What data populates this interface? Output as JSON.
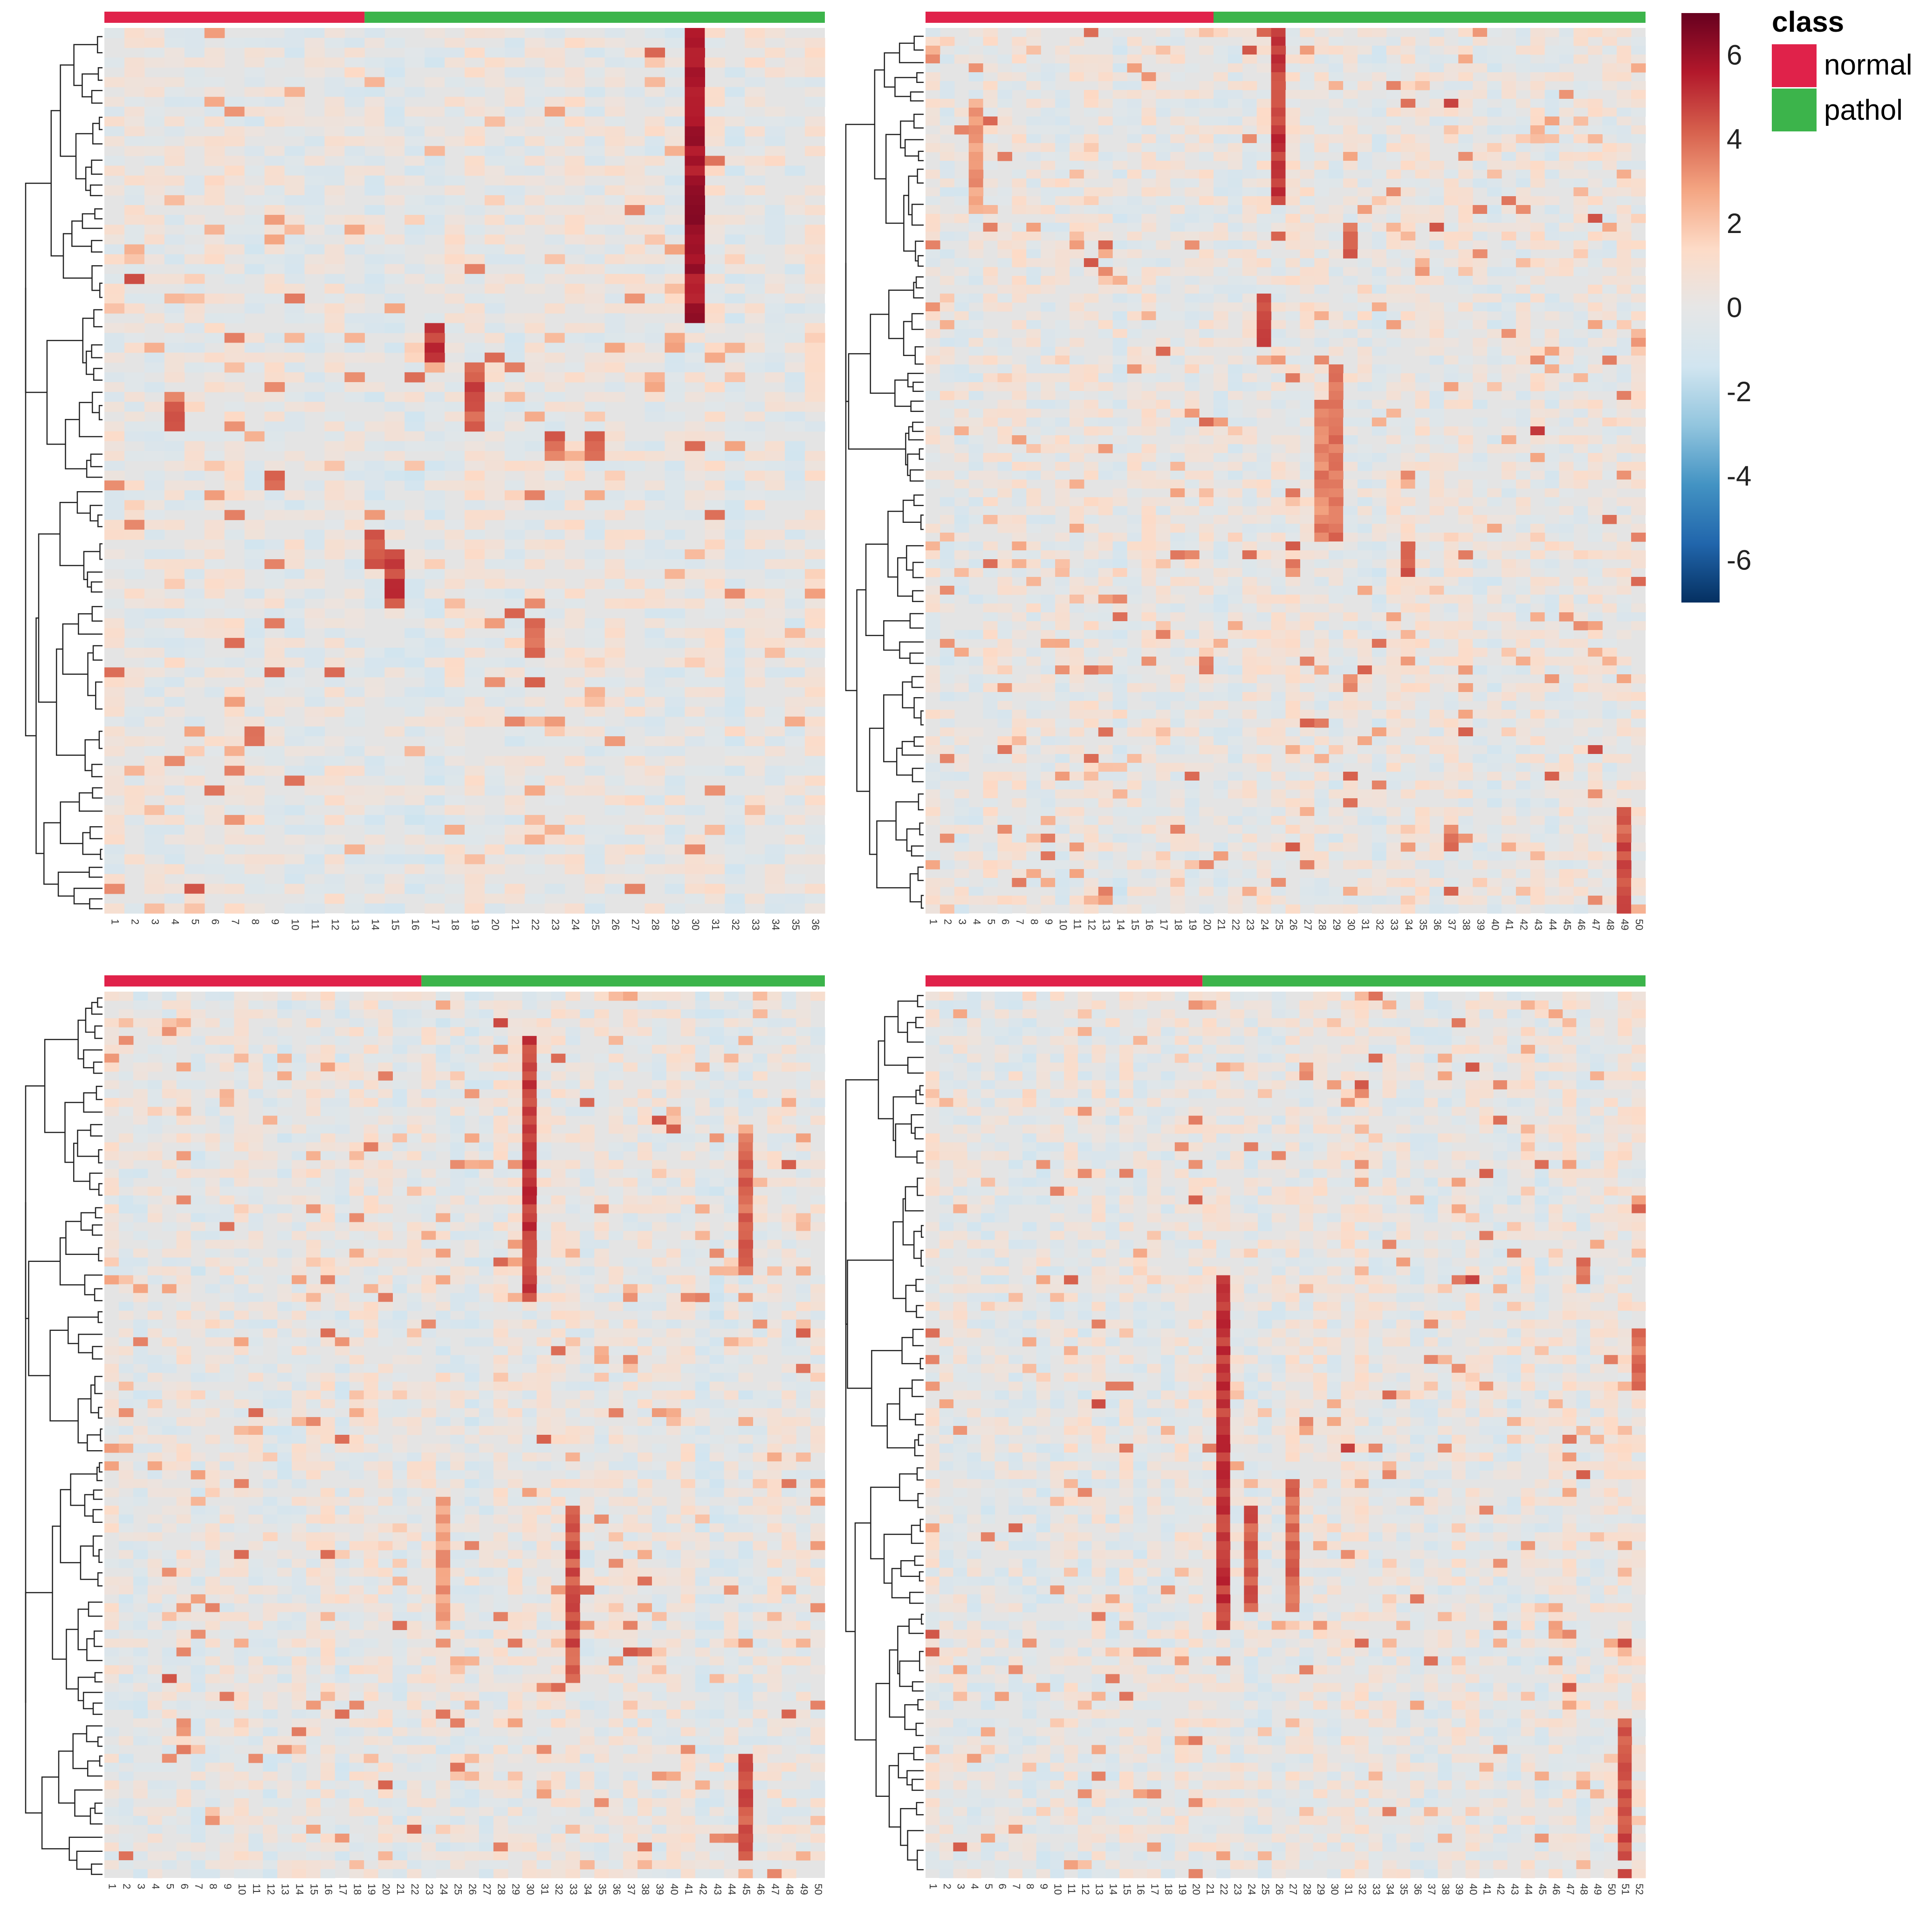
{
  "figure": {
    "description": "Four clustered heatmaps (samples in columns, features in rows) with a shared color scale and class annotation legend",
    "colors": {
      "normal": "#e0224a",
      "pathol": "#3cb44b"
    }
  },
  "legend": {
    "title": "class",
    "entries": [
      {
        "label": "normal",
        "color": "#e0224a"
      },
      {
        "label": "pathol",
        "color": "#3cb44b"
      }
    ],
    "colorbar": {
      "ticks": [
        "6",
        "4",
        "2",
        "0",
        "-2",
        "-4",
        "-6"
      ],
      "range": [
        -7,
        7
      ],
      "colors": [
        "#053061",
        "#2166ac",
        "#4393c3",
        "#92c5de",
        "#d1e5f0",
        "#e6e6e6",
        "#fddbc7",
        "#f4a582",
        "#d6604d",
        "#b2182b",
        "#67001f"
      ]
    }
  },
  "chart_data": [
    {
      "type": "heatmap",
      "panel": "top-left",
      "columns": [
        "1",
        "2",
        "3",
        "4",
        "5",
        "6",
        "7",
        "8",
        "9",
        "10",
        "11",
        "12",
        "13",
        "14",
        "15",
        "16",
        "17",
        "18",
        "19",
        "20",
        "21",
        "22",
        "23",
        "24",
        "25",
        "26",
        "27",
        "28",
        "29",
        "30",
        "31",
        "32",
        "33",
        "34",
        "35",
        "36"
      ],
      "column_classes": {
        "normal": 13,
        "pathol": 23
      },
      "n_rows_approx": 90,
      "value_range": [
        -7,
        7
      ],
      "hotspots": [
        {
          "column": "30",
          "row_from": 0.0,
          "row_to": 0.33,
          "value": 6.5
        },
        {
          "column": "17",
          "row_from": 0.33,
          "row_to": 0.38,
          "value": 5.5
        },
        {
          "column": "19",
          "row_from": 0.38,
          "row_to": 0.45,
          "value": 5.0
        },
        {
          "column": "4",
          "row_from": 0.41,
          "row_to": 0.45,
          "value": 4.5
        },
        {
          "column": "14",
          "row_from": 0.57,
          "row_to": 0.61,
          "value": 5.0
        },
        {
          "column": "15",
          "row_from": 0.59,
          "row_to": 0.64,
          "value": 5.5
        },
        {
          "column": "23",
          "row_from": 0.46,
          "row_to": 0.49,
          "value": 4.5
        },
        {
          "column": "25",
          "row_from": 0.46,
          "row_to": 0.49,
          "value": 5.0
        },
        {
          "column": "22",
          "row_from": 0.67,
          "row_to": 0.71,
          "value": 4.5
        }
      ]
    },
    {
      "type": "heatmap",
      "panel": "top-right",
      "columns": [
        "1",
        "2",
        "3",
        "4",
        "5",
        "6",
        "7",
        "8",
        "9",
        "10",
        "11",
        "12",
        "13",
        "14",
        "15",
        "16",
        "17",
        "18",
        "19",
        "20",
        "21",
        "22",
        "23",
        "24",
        "25",
        "26",
        "27",
        "28",
        "29",
        "30",
        "31",
        "32",
        "33",
        "34",
        "35",
        "36",
        "37",
        "38",
        "39",
        "40",
        "41",
        "42",
        "43",
        "44",
        "45",
        "46",
        "47",
        "48",
        "49",
        "50"
      ],
      "column_classes": {
        "normal": 20,
        "pathol": 30
      },
      "n_rows_approx": 100,
      "value_range": [
        -7,
        7
      ],
      "hotspots": [
        {
          "column": "25",
          "row_from": 0.0,
          "row_to": 0.2,
          "value": 5.5
        },
        {
          "column": "4",
          "row_from": 0.08,
          "row_to": 0.21,
          "value": 3.5
        },
        {
          "column": "24",
          "row_from": 0.3,
          "row_to": 0.36,
          "value": 5.0
        },
        {
          "column": "29",
          "row_from": 0.38,
          "row_to": 0.58,
          "value": 4.5
        },
        {
          "column": "28",
          "row_from": 0.42,
          "row_to": 0.58,
          "value": 4.0
        },
        {
          "column": "30",
          "row_from": 0.22,
          "row_to": 0.26,
          "value": 4.5
        },
        {
          "column": "34",
          "row_from": 0.58,
          "row_to": 0.62,
          "value": 5.0
        },
        {
          "column": "49",
          "row_from": 0.88,
          "row_to": 1.0,
          "value": 5.0
        }
      ]
    },
    {
      "type": "heatmap",
      "panel": "bottom-left",
      "columns": [
        "1",
        "2",
        "3",
        "4",
        "5",
        "6",
        "7",
        "8",
        "9",
        "10",
        "11",
        "12",
        "13",
        "14",
        "15",
        "16",
        "17",
        "18",
        "19",
        "20",
        "21",
        "22",
        "23",
        "24",
        "25",
        "26",
        "27",
        "28",
        "29",
        "30",
        "31",
        "32",
        "33",
        "34",
        "35",
        "36",
        "37",
        "38",
        "39",
        "40",
        "41",
        "42",
        "43",
        "44",
        "45",
        "46",
        "47",
        "48",
        "49",
        "50"
      ],
      "column_classes": {
        "normal": 22,
        "pathol": 28
      },
      "n_rows_approx": 100,
      "value_range": [
        -7,
        7
      ],
      "hotspots": [
        {
          "column": "30",
          "row_from": 0.05,
          "row_to": 0.35,
          "value": 5.5
        },
        {
          "column": "45",
          "row_from": 0.16,
          "row_to": 0.32,
          "value": 4.5
        },
        {
          "column": "33",
          "row_from": 0.58,
          "row_to": 0.78,
          "value": 5.0
        },
        {
          "column": "45",
          "row_from": 0.86,
          "row_to": 0.98,
          "value": 5.0
        },
        {
          "column": "24",
          "row_from": 0.57,
          "row_to": 0.72,
          "value": 3.5
        }
      ]
    },
    {
      "type": "heatmap",
      "panel": "bottom-right",
      "columns": [
        "1",
        "2",
        "3",
        "4",
        "5",
        "6",
        "7",
        "8",
        "9",
        "10",
        "11",
        "12",
        "13",
        "14",
        "15",
        "16",
        "17",
        "18",
        "19",
        "20",
        "21",
        "22",
        "23",
        "24",
        "25",
        "26",
        "27",
        "28",
        "29",
        "30",
        "31",
        "32",
        "33",
        "34",
        "35",
        "36",
        "37",
        "38",
        "39",
        "40",
        "41",
        "42",
        "43",
        "44",
        "45",
        "46",
        "47",
        "48",
        "49",
        "50",
        "51",
        "52"
      ],
      "column_classes": {
        "normal": 20,
        "pathol": 32
      },
      "n_rows_approx": 100,
      "value_range": [
        -7,
        7
      ],
      "hotspots": [
        {
          "column": "22",
          "row_from": 0.32,
          "row_to": 0.72,
          "value": 5.5
        },
        {
          "column": "24",
          "row_from": 0.58,
          "row_to": 0.7,
          "value": 5.0
        },
        {
          "column": "27",
          "row_from": 0.55,
          "row_to": 0.7,
          "value": 4.5
        },
        {
          "column": "51",
          "row_from": 0.82,
          "row_to": 0.98,
          "value": 5.0
        },
        {
          "column": "52",
          "row_from": 0.38,
          "row_to": 0.45,
          "value": 4.5
        },
        {
          "column": "48",
          "row_from": 0.3,
          "row_to": 0.33,
          "value": 4.5
        }
      ]
    }
  ]
}
